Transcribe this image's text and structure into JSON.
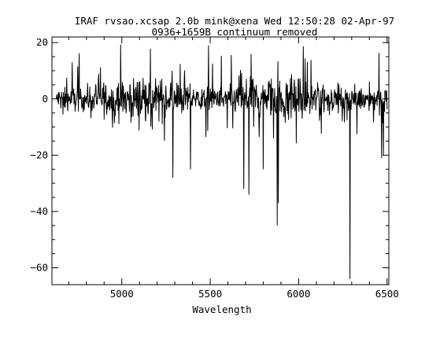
{
  "chart_data": {
    "type": "line",
    "title": "IRAF rvsao.xcsap 2.0b mink@xena Wed 12:50:28 02-Apr-97",
    "subtitle": "0936+1659B continuum removed",
    "xlabel": "Wavelength",
    "ylabel": "",
    "xlim": [
      4605,
      6510
    ],
    "ylim": [
      -66,
      22
    ],
    "xticks": [
      5000,
      5500,
      6000,
      6500
    ],
    "yticks": [
      20,
      0,
      -20,
      -40,
      -60
    ],
    "xticklabels": [
      "5000",
      "5500",
      "6000",
      "6500"
    ],
    "yticklabels": [
      "20",
      "0",
      "−20",
      "−40",
      "−60"
    ],
    "grid": false,
    "line_color": "#000000",
    "series": [
      {
        "x_start": 4630,
        "x_end": 6500,
        "features": [
          {
            "x": 5290,
            "y": -28
          },
          {
            "x": 5390,
            "y": -25
          },
          {
            "x": 5490,
            "y": 19
          },
          {
            "x": 5690,
            "y": -32
          },
          {
            "x": 5720,
            "y": -34
          },
          {
            "x": 5800,
            "y": -25
          },
          {
            "x": 5880,
            "y": -45
          },
          {
            "x": 5885,
            "y": -37
          },
          {
            "x": 6290,
            "y": -64
          },
          {
            "x": 6470,
            "y": -21
          },
          {
            "x": 6480,
            "y": -20
          }
        ]
      }
    ]
  }
}
